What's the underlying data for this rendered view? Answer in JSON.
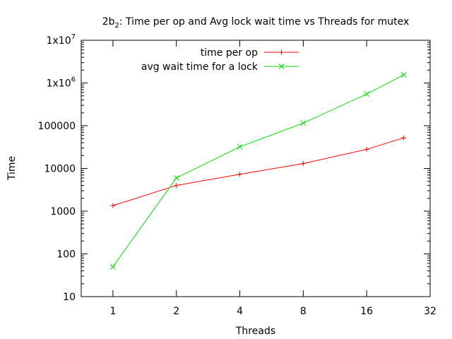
{
  "chart_data": {
    "type": "line",
    "title": {
      "prefix": "2b",
      "subscript": "2",
      "suffix": ": Time per op and Avg lock wait time vs Threads for mutex"
    },
    "xlabel": "Threads",
    "ylabel": "Time",
    "x_scale": "log2",
    "y_scale": "log10",
    "xlim": [
      0.707,
      32
    ],
    "ylim": [
      10,
      10000000
    ],
    "x_ticks": [
      {
        "value": 1,
        "label": "1"
      },
      {
        "value": 2,
        "label": "2"
      },
      {
        "value": 4,
        "label": "4"
      },
      {
        "value": 8,
        "label": "8"
      },
      {
        "value": 16,
        "label": "16"
      },
      {
        "value": 32,
        "label": "32"
      }
    ],
    "y_ticks": [
      {
        "value": 10,
        "label": "10"
      },
      {
        "value": 100,
        "label": "100"
      },
      {
        "value": 1000,
        "label": "1000"
      },
      {
        "value": 10000,
        "label": "10000"
      },
      {
        "value": 100000,
        "label": "100000"
      },
      {
        "value": 1000000,
        "label": "1x10",
        "exp": "6"
      },
      {
        "value": 10000000,
        "label": "1x10",
        "exp": "7"
      }
    ],
    "legend_position": "top-center",
    "series": [
      {
        "name": "time per op",
        "color": "#ff0000",
        "marker": "plus",
        "x": [
          1,
          2,
          4,
          8,
          16,
          24
        ],
        "y": [
          1350,
          4000,
          7300,
          13000,
          28000,
          52000
        ]
      },
      {
        "name": "avg wait time for a lock",
        "color": "#00dd00",
        "marker": "cross",
        "x": [
          1,
          2,
          4,
          8,
          16,
          24
        ],
        "y": [
          50,
          6000,
          32000,
          115000,
          550000,
          1550000
        ]
      }
    ]
  }
}
